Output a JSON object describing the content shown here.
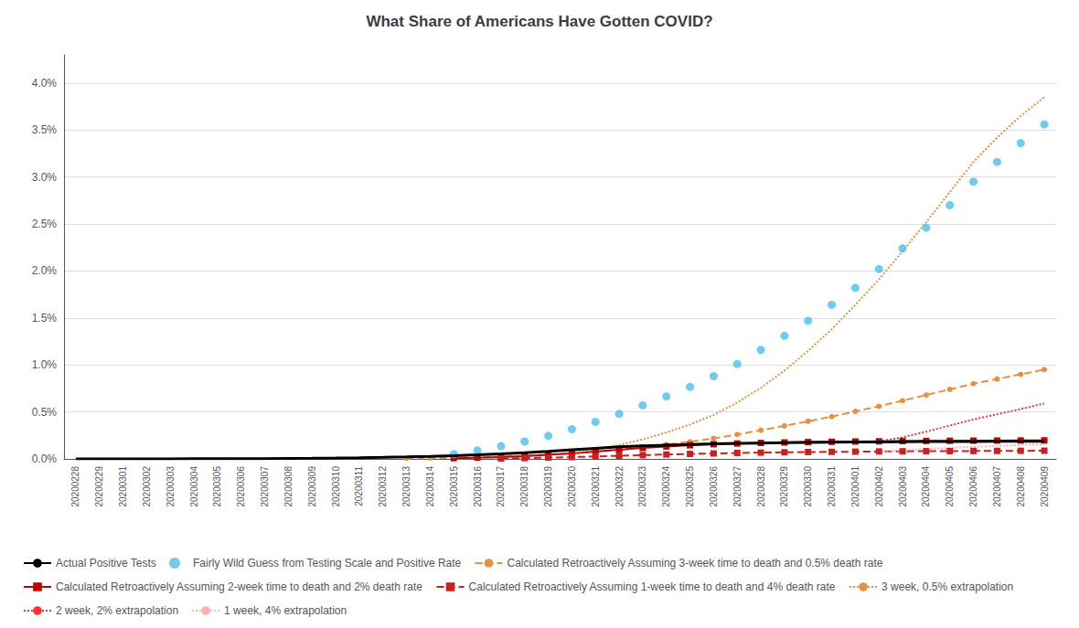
{
  "chart_data": {
    "type": "line",
    "title": "What Share of Americans Have Gotten COVID?",
    "categories": [
      "20200228",
      "20200229",
      "20200301",
      "20200302",
      "20200303",
      "20200304",
      "20200305",
      "20200306",
      "20200307",
      "20200308",
      "20200309",
      "20200310",
      "20200311",
      "20200312",
      "20200313",
      "20200314",
      "20200315",
      "20200316",
      "20200317",
      "20200318",
      "20200319",
      "20200320",
      "20200321",
      "20200322",
      "20200323",
      "20200324",
      "20200325",
      "20200326",
      "20200327",
      "20200328",
      "20200329",
      "20200330",
      "20200331",
      "20200401",
      "20200402",
      "20200403",
      "20200404",
      "20200405",
      "20200406",
      "20200407",
      "20200408",
      "20200409"
    ],
    "series": [
      {
        "name": "Actual Positive Tests",
        "type": "line",
        "color": "#000000",
        "marker": "none",
        "line_style": "solid",
        "values": [
          3e-06,
          4e-06,
          5e-06,
          7e-06,
          1e-05,
          1.4e-05,
          1.9e-05,
          2.6e-05,
          3.6e-05,
          4.8e-05,
          6.5e-05,
          8.7e-05,
          0.000118,
          0.000159,
          0.00021,
          0.00027,
          0.00034,
          0.00043,
          0.00053,
          0.00065,
          0.0008,
          0.00098,
          0.00113,
          0.00128,
          0.00138,
          0.00146,
          0.00153,
          0.0016,
          0.00165,
          0.00169,
          0.00172,
          0.001745,
          0.00177,
          0.00179,
          0.00181,
          0.001825,
          0.00184,
          0.00185,
          0.001858,
          0.001863,
          0.001868,
          0.001875
        ]
      },
      {
        "name": "Fairly Wild Guess from Testing Scale and Positive Rate",
        "type": "scatter",
        "color": "#4BBFE8",
        "marker": "circle",
        "values": [
          null,
          null,
          null,
          null,
          null,
          null,
          null,
          null,
          null,
          null,
          null,
          null,
          null,
          null,
          null,
          null,
          0.0005,
          0.0009,
          0.00135,
          0.00185,
          0.00245,
          0.00315,
          0.00395,
          0.0048,
          0.0057,
          0.00665,
          0.00765,
          0.0088,
          0.0101,
          0.0116,
          0.0131,
          0.0147,
          0.0164,
          0.0182,
          0.0202,
          0.0224,
          0.0246,
          0.027,
          0.0295,
          0.0316,
          0.0336,
          0.0356
        ]
      },
      {
        "name": "Calculated Retroactively Assuming 3-week time to death and 0.5% death rate",
        "type": "line",
        "color": "#E89040",
        "marker": "circle",
        "line_style": "dashed",
        "values": [
          null,
          null,
          null,
          null,
          null,
          null,
          null,
          null,
          null,
          null,
          null,
          null,
          null,
          null,
          5e-05,
          8e-05,
          0.00012,
          0.00017,
          0.00024,
          0.00033,
          0.00045,
          0.0006,
          0.00078,
          0.001,
          0.00125,
          0.00152,
          0.00182,
          0.00218,
          0.0026,
          0.00305,
          0.00352,
          0.004,
          0.0045,
          0.00505,
          0.0056,
          0.0062,
          0.0068,
          0.0074,
          0.008,
          0.0085,
          0.009,
          0.0095
        ]
      },
      {
        "name": "Calculated Retroactively Assuming 2-week time to death and 2% death rate",
        "type": "line",
        "color": "#C00000",
        "marker": "square",
        "line_style": "solid",
        "values": [
          null,
          null,
          null,
          null,
          null,
          null,
          null,
          null,
          null,
          null,
          null,
          null,
          null,
          null,
          null,
          null,
          8e-05,
          0.00013,
          0.0002,
          0.0003,
          0.00043,
          0.00059,
          0.00078,
          0.00098,
          0.00116,
          0.00132,
          0.00145,
          0.00156,
          0.00164,
          0.0017,
          0.00175,
          0.00179,
          0.00182,
          0.00185,
          0.00187,
          0.00189,
          0.00191,
          0.00193,
          0.00194,
          0.00195,
          0.00196,
          0.00197
        ]
      },
      {
        "name": "Calculated Retroactively Assuming 1-week time to death and 4% death rate",
        "type": "line",
        "color": "#CC2020",
        "marker": "square",
        "line_style": "dashed",
        "values": [
          null,
          null,
          null,
          null,
          null,
          null,
          null,
          null,
          null,
          null,
          null,
          null,
          null,
          null,
          null,
          null,
          null,
          null,
          5e-05,
          8e-05,
          0.00013,
          0.00019,
          0.00026,
          0.00033,
          0.0004,
          0.00047,
          0.00053,
          0.00058,
          0.00063,
          0.00067,
          0.0007,
          0.00073,
          0.00075,
          0.00077,
          0.00079,
          0.00081,
          0.00082,
          0.00083,
          0.00084,
          0.00085,
          0.00086,
          0.00087
        ]
      },
      {
        "name": "3 week, 0.5% extrapolation",
        "type": "line",
        "color": "#E89040",
        "marker": "none",
        "line_style": "dotted",
        "values": [
          null,
          null,
          null,
          null,
          null,
          null,
          null,
          null,
          null,
          null,
          null,
          null,
          null,
          null,
          null,
          null,
          null,
          null,
          null,
          null,
          null,
          0.00065,
          0.001,
          0.00148,
          0.00208,
          0.0028,
          0.00366,
          0.00468,
          0.006,
          0.00756,
          0.0094,
          0.0115,
          0.0138,
          0.0164,
          0.0191,
          0.0221,
          0.0252,
          0.0284,
          0.0316,
          0.0342,
          0.0365,
          0.0385
        ]
      },
      {
        "name": "2 week, 2% extrapolation",
        "type": "line",
        "color": "#FF3030",
        "marker": "none",
        "line_style": "dotted",
        "values": [
          null,
          null,
          null,
          null,
          null,
          null,
          null,
          null,
          null,
          null,
          null,
          null,
          null,
          null,
          null,
          null,
          null,
          null,
          null,
          null,
          null,
          null,
          null,
          null,
          null,
          null,
          null,
          null,
          null,
          null,
          null,
          null,
          null,
          null,
          0.00187,
          0.0023,
          0.0029,
          0.00355,
          0.0042,
          0.00475,
          0.0053,
          0.0059
        ]
      },
      {
        "name": "1 week, 4% extrapolation",
        "type": "line",
        "color": "#FFB0B0",
        "marker": "none",
        "line_style": "dotted",
        "values": [
          null,
          null,
          null,
          null,
          null,
          null,
          null,
          null,
          null,
          null,
          null,
          null,
          null,
          null,
          null,
          null,
          null,
          null,
          null,
          null,
          null,
          null,
          null,
          null,
          null,
          null,
          null,
          null,
          null,
          null,
          null,
          null,
          null,
          null,
          0.00079,
          0.00092,
          0.00105,
          0.00117,
          0.00129,
          0.00138,
          0.00148,
          0.00158
        ]
      }
    ],
    "ylim": [
      0.0,
      0.043
    ],
    "yticks": [
      {
        "value": 0.0,
        "label": "0.0%"
      },
      {
        "value": 0.005,
        "label": "0.5%"
      },
      {
        "value": 0.01,
        "label": "1.0%"
      },
      {
        "value": 0.015,
        "label": "1.5%"
      },
      {
        "value": 0.02,
        "label": "2.0%"
      },
      {
        "value": 0.025,
        "label": "2.5%"
      },
      {
        "value": 0.03,
        "label": "3.0%"
      },
      {
        "value": 0.035,
        "label": "3.5%"
      },
      {
        "value": 0.04,
        "label": "4.0%"
      }
    ],
    "grid": "y",
    "legend": "bottom"
  }
}
